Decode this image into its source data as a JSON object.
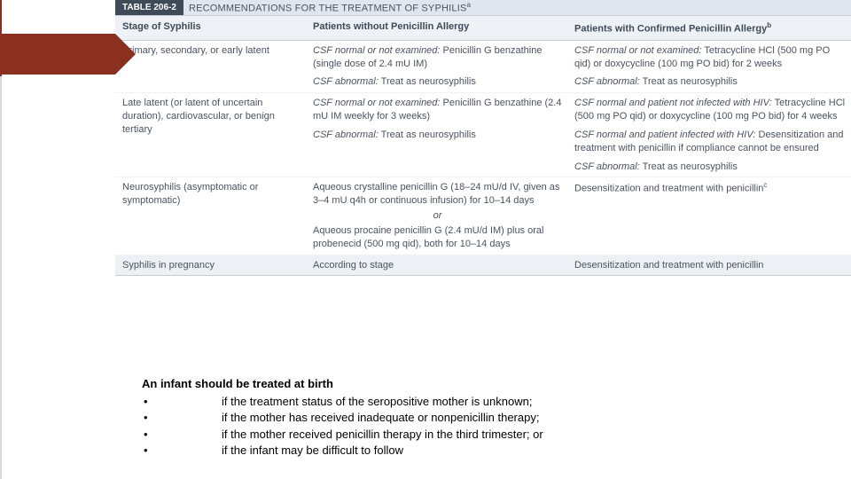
{
  "shape": {
    "color": "#8b2f1e"
  },
  "table": {
    "badge": "TABLE 206-2",
    "title": "RECOMMENDATIONS FOR THE TREATMENT OF SYPHILIS",
    "title_sup": "a",
    "columns": [
      "Stage of Syphilis",
      "Patients without Penicillin Allergy",
      "Patients with Confirmed Penicillin Allergy"
    ],
    "col3_sup": "b",
    "rows": [
      {
        "stage": "Primary, secondary, or early latent",
        "col2": [
          {
            "lead": "CSF normal or not examined:",
            "text": " Penicillin G benzathine (single dose of 2.4 mU IM)"
          },
          {
            "lead": "CSF abnormal:",
            "text": " Treat as neurosyphilis"
          }
        ],
        "col3": [
          {
            "lead": "CSF normal or not examined:",
            "text": " Tetracycline HCl (500 mg PO qid) or doxycycline (100 mg PO bid) for 2 weeks"
          },
          {
            "lead": "CSF abnormal:",
            "text": " Treat as neurosyphilis"
          }
        ]
      },
      {
        "stage": "Late latent (or latent of uncertain duration), cardiovascular, or benign tertiary",
        "col2": [
          {
            "lead": "CSF normal or not examined:",
            "text": " Penicillin G benzathine (2.4 mU IM weekly for 3 weeks)"
          },
          {
            "lead": "CSF abnormal:",
            "text": " Treat as neurosyphilis"
          }
        ],
        "col3": [
          {
            "lead": "CSF normal and patient not infected with HIV:",
            "text": " Tetracycline HCl (500 mg PO qid) or doxycycline (100 mg PO bid) for 4 weeks"
          },
          {
            "lead": "CSF normal and patient infected with HIV:",
            "text": " Desensitization and treatment with penicillin if compliance cannot be ensured"
          },
          {
            "lead": "CSF abnormal:",
            "text": " Treat as neurosyphilis"
          }
        ]
      },
      {
        "stage": "Neurosyphilis (asymptomatic or symptomatic)",
        "col2_block": {
          "first": "Aqueous crystalline penicillin G (18–24 mU/d IV, given as 3–4 mU q4h or continuous infusion) for 10–14 days",
          "or": "or",
          "second": "Aqueous procaine penicillin G (2.4 mU/d IM) plus oral probenecid (500 mg qid), both for 10–14 days"
        },
        "col3_plain": "Desensitization and treatment with penicillin",
        "col3_sup": "c"
      },
      {
        "stage": "Syphilis in pregnancy",
        "col2_plain": "According to stage",
        "col3_plain": "Desensitization and treatment with penicillin"
      }
    ]
  },
  "bottom": {
    "heading": "An infant should be treated at birth",
    "bullets": [
      "if the treatment status of the seropositive mother is unknown;",
      "if the mother has received inadequate or nonpenicillin therapy;",
      "if the mother received penicillin therapy in the third trimester; or",
      "if the infant may be difficult to follow"
    ]
  }
}
